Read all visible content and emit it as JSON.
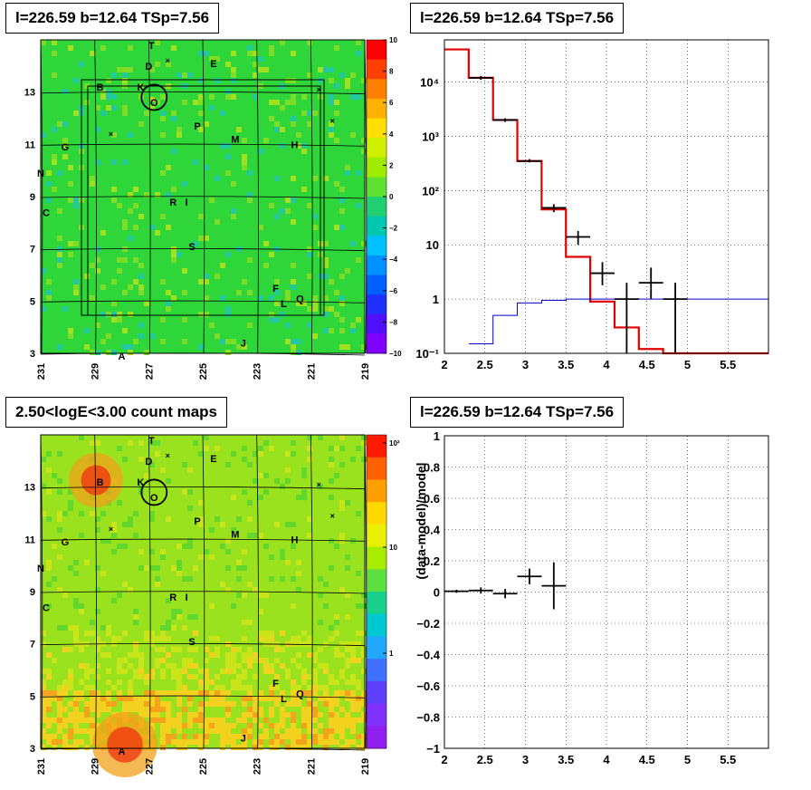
{
  "panels": {
    "tl_title": "l=226.59 b=12.64 TSp=7.56",
    "tr_title": "l=226.59 b=12.64 TSp=7.56",
    "bl_title": "2.50<logE<3.00 count maps",
    "br_title": "l=226.59 b=12.64 TSp=7.56"
  },
  "colors": {
    "residual_bg": "#2ed63a",
    "counts_bg": "#9be21e",
    "model_line": "#e00000",
    "bkg_line": "#0000cc",
    "data": "#000000"
  },
  "chart_data": [
    {
      "type": "heatmap",
      "name": "residual map",
      "x_ticks": [
        "231",
        "229",
        "227",
        "225",
        "223",
        "221",
        "219"
      ],
      "y_ticks": [
        "3",
        "5",
        "7",
        "9",
        "11",
        "13"
      ],
      "colorbar_ticks": [
        "10",
        "8",
        "6",
        "4",
        "2",
        "0",
        "−2",
        "−4",
        "−6",
        "−8",
        "−10"
      ],
      "sources": [
        {
          "label": "T",
          "l": 226.9,
          "b": 14.8
        },
        {
          "label": "D",
          "l": 227.0,
          "b": 14.0
        },
        {
          "label": "E",
          "l": 224.6,
          "b": 14.1
        },
        {
          "label": "B",
          "l": 228.8,
          "b": 13.2
        },
        {
          "label": "K",
          "l": 227.3,
          "b": 13.2
        },
        {
          "label": "O",
          "l": 226.8,
          "b": 12.6
        },
        {
          "label": "P",
          "l": 225.2,
          "b": 11.7
        },
        {
          "label": "M",
          "l": 223.8,
          "b": 11.2
        },
        {
          "label": "H",
          "l": 221.6,
          "b": 11.0
        },
        {
          "label": "G",
          "l": 230.1,
          "b": 10.9
        },
        {
          "label": "N",
          "l": 231.0,
          "b": 9.9
        },
        {
          "label": "R",
          "l": 226.1,
          "b": 8.8
        },
        {
          "label": "I",
          "l": 225.6,
          "b": 8.8
        },
        {
          "label": "C",
          "l": 230.8,
          "b": 8.4
        },
        {
          "label": "S",
          "l": 225.4,
          "b": 7.1
        },
        {
          "label": "F",
          "l": 222.3,
          "b": 5.5
        },
        {
          "label": "Q",
          "l": 221.4,
          "b": 5.1
        },
        {
          "label": "L",
          "l": 222.0,
          "b": 4.9
        },
        {
          "label": "J",
          "l": 223.5,
          "b": 3.4
        },
        {
          "label": "A",
          "l": 228.0,
          "b": 2.9
        }
      ]
    },
    {
      "type": "line",
      "name": "spectrum",
      "ylog": true,
      "x_ticks": [
        "2",
        "2.5",
        "3",
        "3.5",
        "4",
        "4.5",
        "5",
        "5.5"
      ],
      "y_ticks": [
        "10⁻¹",
        "1",
        "10",
        "10²",
        "10³",
        "10⁴"
      ],
      "xlim": [
        2,
        6
      ],
      "ylim": [
        0.1,
        60000
      ],
      "model_bins": [
        [
          2.0,
          2.3,
          40000
        ],
        [
          2.3,
          2.6,
          12000
        ],
        [
          2.6,
          2.9,
          2000
        ],
        [
          2.9,
          3.2,
          350
        ],
        [
          3.2,
          3.5,
          45
        ],
        [
          3.5,
          3.8,
          6
        ],
        [
          3.8,
          4.1,
          0.9
        ],
        [
          4.1,
          4.4,
          0.3
        ],
        [
          4.4,
          4.7,
          0.12
        ],
        [
          4.7,
          6.0,
          0.1
        ]
      ],
      "bkg_bins": [
        [
          2.3,
          2.6,
          0.15
        ],
        [
          2.6,
          2.9,
          0.5
        ],
        [
          2.9,
          3.2,
          0.85
        ],
        [
          3.2,
          3.5,
          0.95
        ],
        [
          3.5,
          6.0,
          1.0
        ]
      ],
      "data_points": [
        {
          "x": 2.45,
          "y": 12000,
          "xerr": 0.15,
          "ylo": 11000,
          "yhi": 13000
        },
        {
          "x": 2.75,
          "y": 2000,
          "xerr": 0.15,
          "ylo": 1850,
          "yhi": 2150
        },
        {
          "x": 3.05,
          "y": 350,
          "xerr": 0.15,
          "ylo": 330,
          "yhi": 380
        },
        {
          "x": 3.35,
          "y": 48,
          "xerr": 0.15,
          "ylo": 40,
          "yhi": 56
        },
        {
          "x": 3.65,
          "y": 14,
          "xerr": 0.15,
          "ylo": 10,
          "yhi": 18
        },
        {
          "x": 3.95,
          "y": 3,
          "xerr": 0.15,
          "ylo": 1.8,
          "yhi": 4.8
        },
        {
          "x": 4.25,
          "y": 1,
          "xerr": 0.15,
          "ylo": 0.1,
          "yhi": 2.0
        },
        {
          "x": 4.55,
          "y": 2,
          "xerr": 0.15,
          "ylo": 1.0,
          "yhi": 3.8
        },
        {
          "x": 4.85,
          "y": 1,
          "xerr": 0.15,
          "ylo": 0.1,
          "yhi": 2.0
        }
      ]
    },
    {
      "type": "heatmap",
      "name": "count map",
      "x_ticks": [
        "231",
        "229",
        "227",
        "225",
        "223",
        "221",
        "219"
      ],
      "y_ticks": [
        "3",
        "5",
        "7",
        "9",
        "11",
        "13"
      ],
      "colorbar_ticks": [
        "10²",
        "10",
        "1"
      ]
    },
    {
      "type": "scatter",
      "name": "residual ratio",
      "ylabel": "(data-model)/model",
      "x_ticks": [
        "2",
        "2.5",
        "3",
        "3.5",
        "4",
        "4.5",
        "5",
        "5.5"
      ],
      "y_ticks": [
        "1",
        "0.8",
        "0.6",
        "0.4",
        "0.2",
        "0",
        "−0.2",
        "−0.4",
        "−0.6",
        "−0.8",
        "−1"
      ],
      "xlim": [
        2,
        6
      ],
      "ylim": [
        -1,
        1
      ],
      "data_points": [
        {
          "x": 2.15,
          "y": 0.005,
          "xerr": 0.15,
          "yerr": 0.01
        },
        {
          "x": 2.45,
          "y": 0.01,
          "xerr": 0.15,
          "yerr": 0.02
        },
        {
          "x": 2.75,
          "y": -0.01,
          "xerr": 0.15,
          "yerr": 0.03
        },
        {
          "x": 3.05,
          "y": 0.1,
          "xerr": 0.15,
          "yerr": 0.05
        },
        {
          "x": 3.35,
          "y": 0.04,
          "xerr": 0.15,
          "yerr": 0.15
        }
      ]
    }
  ]
}
